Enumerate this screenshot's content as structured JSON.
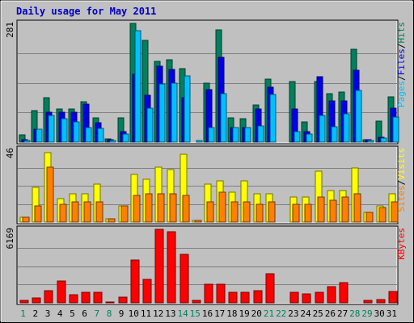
{
  "chart_data": {
    "type": "bar",
    "title": "Daily usage for May 2011",
    "categories": [
      "1",
      "2",
      "3",
      "4",
      "5",
      "6",
      "7",
      "8",
      "9",
      "10",
      "11",
      "12",
      "13",
      "14",
      "15",
      "16",
      "17",
      "18",
      "19",
      "20",
      "21",
      "22",
      "23",
      "24",
      "25",
      "26",
      "27",
      "28",
      "29",
      "30",
      "31"
    ],
    "weekend_days": [
      1,
      7,
      8,
      14,
      15,
      21,
      22,
      28,
      29
    ],
    "colors": {
      "title": "#0000c0",
      "weekend_label": "#00805c",
      "weekday_label": "#000000",
      "hits": "#00805c",
      "files": "#0000e6",
      "pages": "#00c0ff",
      "visits": "#ffff00",
      "sites": "#ff8000",
      "kbytes": "#ff0000",
      "plot_bg": "#c0c0c0",
      "grid": "#808080"
    },
    "panels": [
      {
        "name": "requests",
        "ymax_label": "281",
        "ylim": [
          0,
          281
        ],
        "legend": [
          "Pages",
          "/",
          "Files",
          "/",
          "Hits"
        ],
        "series": [
          {
            "name": "Hits",
            "values": [
              18,
              75,
              105,
              78,
              78,
              96,
              58,
              7,
              58,
              281,
              240,
              192,
              195,
              173,
              0,
              140,
              265,
              58,
              55,
              88,
              150,
              0,
              143,
              48,
              143,
              115,
              118,
              220,
              5,
              50,
              107
            ]
          },
          {
            "name": "Files",
            "values": [
              5,
              30,
              70,
              70,
              70,
              90,
              45,
              5,
              25,
              160,
              110,
              180,
              172,
              105,
              0,
              125,
              200,
              35,
              35,
              78,
              130,
              0,
              78,
              25,
              155,
              98,
              98,
              170,
              5,
              12,
              80
            ]
          },
          {
            "name": "Pages",
            "values": [
              4,
              30,
              63,
              55,
              48,
              34,
              32,
              3,
              20,
              263,
              80,
              138,
              140,
              157,
              4,
              35,
              114,
              35,
              34,
              38,
              113,
              0,
              24,
              20,
              63,
              36,
              66,
              122,
              4,
              10,
              60
            ]
          }
        ]
      },
      {
        "name": "visitors",
        "ymax_label": "46",
        "ylim": [
          0,
          46
        ],
        "legend": [
          "Sites",
          "/",
          "Visits"
        ],
        "series": [
          {
            "name": "Visits",
            "values": [
              3,
              22,
              44,
              15,
              18,
              18,
              24,
              2,
              10,
              30,
              27,
              35,
              33,
              43,
              1,
              24,
              26,
              19,
              26,
              18,
              18,
              0,
              16,
              16,
              32,
              20,
              20,
              34,
              6,
              10,
              18
            ]
          },
          {
            "name": "Sites",
            "values": [
              3,
              10,
              35,
              11,
              13,
              13,
              13,
              2,
              10,
              17,
              18,
              18,
              18,
              17,
              1,
              13,
              19,
              13,
              13,
              11,
              13,
              0,
              11,
              11,
              16,
              14,
              16,
              18,
              6,
              9,
              13
            ]
          }
        ]
      },
      {
        "name": "volume",
        "ymax_label": "6169",
        "ylim": [
          0,
          6169
        ],
        "legend": [
          "KBytes"
        ],
        "series": [
          {
            "name": "KBytes",
            "values": [
              200,
              400,
              1000,
              1800,
              700,
              900,
              850,
              100,
              450,
              3600,
              1970,
              6169,
              5940,
              4100,
              200,
              1560,
              1570,
              880,
              870,
              1000,
              2470,
              0,
              880,
              740,
              900,
              1350,
              1720,
              0,
              190,
              260,
              920
            ]
          }
        ]
      }
    ]
  }
}
